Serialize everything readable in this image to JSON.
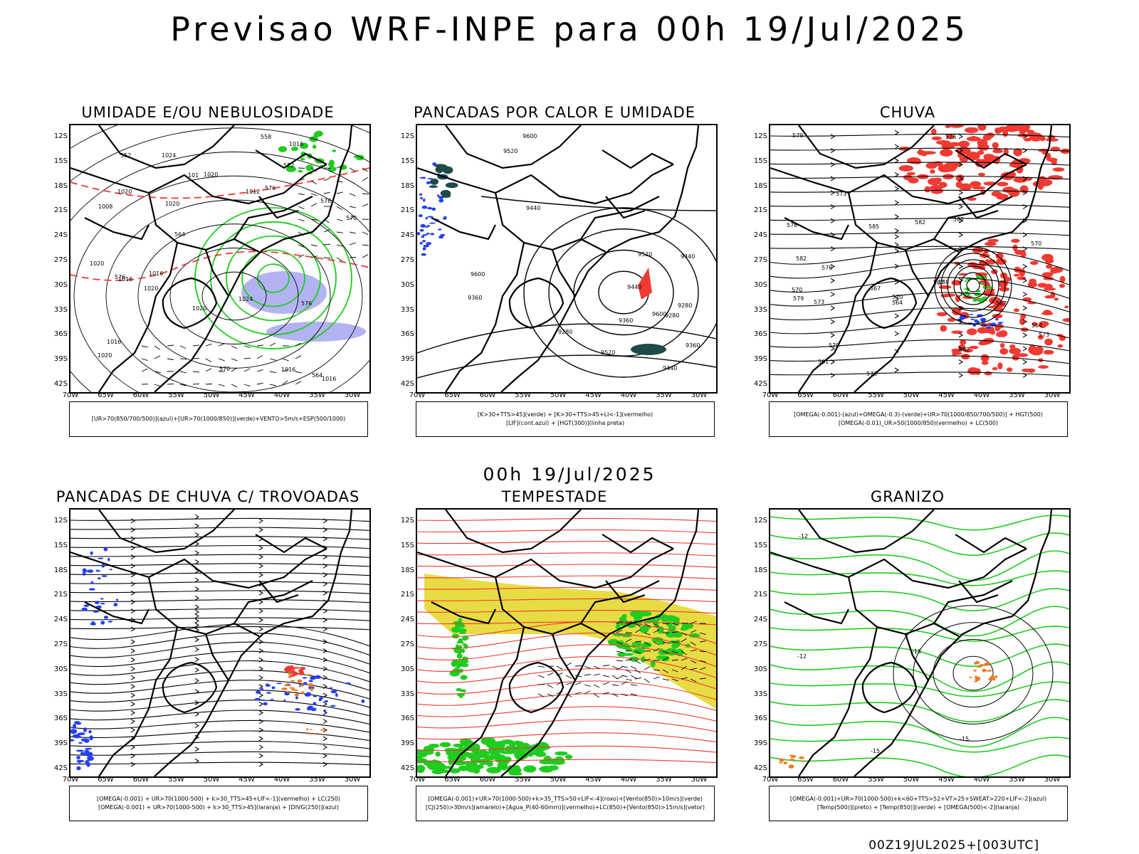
{
  "title": "Previsao WRF-INPE  para 00h 19/Jul/2025",
  "subtitle": "00h 19/Jul/2025",
  "footer": "00Z19JUL2025+[003UTC]",
  "lat_ticks": [
    "12S",
    "15S",
    "18S",
    "21S",
    "24S",
    "27S",
    "30S",
    "33S",
    "36S",
    "39S",
    "42S"
  ],
  "lon_ticks": [
    "70W",
    "65W",
    "60W",
    "55W",
    "50W",
    "45W",
    "40W",
    "35W",
    "30W"
  ],
  "colors": {
    "red": "#f03a32",
    "green": "#1fcc1f",
    "blue": "#2440f0",
    "lavender": "#a6a6f2",
    "yellow": "#e6d830",
    "teal": "#1e4a4a",
    "orange": "#f07a20",
    "black": "#000000"
  },
  "panels": [
    {
      "title": "UMIDADE E/OU NEBULOSIDADE",
      "legend": [
        "[UR>70(850/700/500)](azul)+[UR>70(1000/850)](verde)+VENTO>5m/s+ESP(500/1000)"
      ],
      "labels": [
        "1016",
        "1016",
        "1020",
        "1020",
        "1020",
        "1020",
        "1020",
        "1020",
        "1024",
        "1024",
        "1016",
        "1016",
        "1016",
        "1020",
        "1016",
        "1012",
        "1008",
        "101",
        "552",
        "564",
        "564",
        "558",
        "570",
        "570",
        "576",
        "576",
        "576",
        "552",
        "576"
      ]
    },
    {
      "title": "PANCADAS POR CALOR E UMIDADE",
      "legend": [
        "[K>30+TTS>45](verde) + [K>30+TTS>45+LI<-1](vermelho)",
        "[LIF](cont.azul) + [HGT(300)](linha preta)"
      ],
      "labels": [
        "9520",
        "9600",
        "9600",
        "9600",
        "9520",
        "9520",
        "9440",
        "9440",
        "9360",
        "9280",
        "9440",
        "9440",
        "9360",
        "9360",
        "9280",
        "9280"
      ]
    },
    {
      "title": "CHUVA",
      "legend": [
        "[OMEGA(-0.001)-(azul)+OMEGA(-0.3)-(verde)+UR>70(1000/850/700/500)] + HGT(500)",
        "[OMEGA(-0.01)_UR>50(1000/850)(vermelho) + LC(500)"
      ],
      "labels": [
        "588",
        "585",
        "582",
        "579",
        "576",
        "573",
        "570",
        "567",
        "564",
        "582",
        "579",
        "576",
        "573",
        "570",
        "567",
        "564",
        "561",
        "579",
        "576",
        "582",
        "582",
        "576",
        "573",
        "570",
        "567"
      ]
    },
    {
      "title": "PANCADAS DE CHUVA C/ TROVOADAS",
      "legend": [
        "[OMEGA(-0.001) + UR>70(1000-500) + k>30_TTS>45+LIF<-1](vermelho) + LC(250)",
        "[OMEGA(-0.001) + UR>70(1000-500) + k>30_TTS>45](laranja) + [DIVG(250)](azul)"
      ],
      "labels": []
    },
    {
      "title": "TEMPESTADE",
      "legend": [
        "[OMEGA(-0.001)+UR>70(1000-500)+k>35_TTS>50+LIF<-4](roxo)+[Vento(850)>10m/s](verde)",
        "[CJ(250)>30m/s](amarelo)+[Agua_P(40-60mm)](vermelho)+LC(850)+[Vento(850)>15m/s](vetor)"
      ],
      "labels": []
    },
    {
      "title": "GRANIZO",
      "legend": [
        "[OMEGA(-0.001)+UR>70(1000-500)+k<60+TTS>52+VT>25+SWEAT>220+LIF<-2](azul)",
        "[Temp(500)](preto) + [Temp(850)](verde) + [OMEGA(500)<-2](laranja)"
      ],
      "labels": [
        "-12",
        "-15",
        "-15",
        "-15",
        "-12"
      ]
    }
  ]
}
